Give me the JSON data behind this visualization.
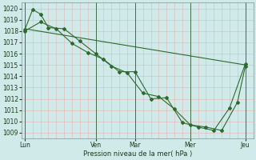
{
  "background_color": "#d0eaea",
  "grid_color": "#e8b4b4",
  "line_color": "#2d6a2d",
  "xlabel": "Pression niveau de la mer( hPa )",
  "ylim": [
    1008.5,
    1020.5
  ],
  "yticks": [
    1009,
    1010,
    1011,
    1012,
    1013,
    1014,
    1015,
    1016,
    1017,
    1018,
    1019,
    1020
  ],
  "xtick_labels": [
    "Lun",
    "Ven",
    "Mar",
    "Mer",
    "Jeu"
  ],
  "xtick_positions": [
    0,
    4.5,
    7,
    10.5,
    14
  ],
  "xlim": [
    -0.2,
    14.5
  ],
  "vline_positions": [
    0,
    4.5,
    7,
    10.5,
    14
  ],
  "line1_x": [
    0,
    14
  ],
  "line1_y": [
    1018.2,
    1015.0
  ],
  "line2_x": [
    0,
    0.5,
    1.0,
    1.5,
    2.5,
    3.5,
    4.5,
    5.5,
    6.5,
    7.5,
    8.5,
    9.5,
    10.5,
    11.5,
    12.5,
    13.5,
    14
  ],
  "line2_y": [
    1018.1,
    1019.9,
    1019.5,
    1018.3,
    1018.2,
    1017.1,
    1016.0,
    1014.9,
    1014.3,
    1012.5,
    1012.2,
    1011.1,
    1009.7,
    1009.5,
    1009.2,
    1011.7,
    1014.9
  ],
  "line3_x": [
    0,
    1,
    2,
    3,
    4,
    5,
    6,
    7,
    8,
    9,
    10,
    11,
    12,
    13,
    14
  ],
  "line3_y": [
    1018.0,
    1018.8,
    1018.2,
    1016.9,
    1016.1,
    1015.5,
    1014.4,
    1014.4,
    1012.0,
    1012.1,
    1009.9,
    1009.5,
    1009.2,
    1011.2,
    1015.1
  ]
}
